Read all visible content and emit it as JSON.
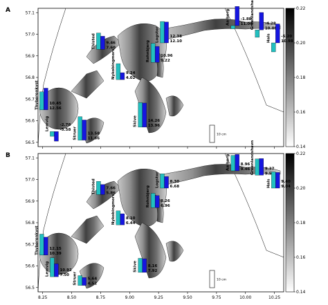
{
  "axes": {
    "xlim": [
      8.21,
      10.33
    ],
    "ylim": [
      56.48,
      57.12
    ],
    "xticks": [
      8.25,
      {
        "value": 8.5,
        "label": "8.50"
      },
      8.75,
      {
        "value": 9,
        "label": "9.00"
      },
      9.25,
      {
        "value": 9.5,
        "label": "9.50"
      },
      9.75,
      {
        "value": 10,
        "label": "10.00"
      },
      10.25
    ],
    "yticks": [
      56.5,
      56.6,
      56.7,
      56.8,
      56.9,
      {
        "value": 57,
        "label": "57.0"
      },
      57.1
    ]
  },
  "colorbar": {
    "clim": [
      0.14,
      0.22
    ],
    "ticks": [
      0.14,
      0.16,
      0.18,
      {
        "value": 0.2,
        "label": "0.20"
      },
      0.22
    ]
  },
  "bar_colors": [
    "#22c0c0",
    "#1616e0"
  ],
  "scale_bar": {
    "value": 10,
    "label": "10 cm"
  },
  "panels": [
    {
      "label": "A",
      "stations": [
        {
          "name": "Thyboronkyst",
          "lon": 8.26,
          "lat": 56.65,
          "values": [
            10.45,
            12.56
          ],
          "value_labels": [
            "10.45",
            "12.56"
          ]
        },
        {
          "name": "Lemvig",
          "lon": 8.35,
          "lat": 56.55,
          "values": [
            -2.78,
            -5.58
          ],
          "value_labels": [
            "-2.78",
            "-5.58"
          ]
        },
        {
          "name": "Struer",
          "lon": 8.59,
          "lat": 56.51,
          "values": [
            13.58,
            11.66
          ],
          "value_labels": [
            "13.58",
            "11.66"
          ]
        },
        {
          "name": "Skive",
          "lon": 9.11,
          "lat": 56.57,
          "values": [
            14.26,
            13.96
          ],
          "value_labels": [
            "14.26",
            "13.96"
          ]
        },
        {
          "name": "Nykobingmors",
          "lon": 8.92,
          "lat": 56.79,
          "values": [
            9.24,
            4.02
          ],
          "value_labels": [
            "9.24",
            "4.02"
          ]
        },
        {
          "name": "Thisted",
          "lon": 8.75,
          "lat": 56.93,
          "values": [
            9.46,
            7.6
          ],
          "value_labels": [
            "9.46",
            "7.60"
          ]
        },
        {
          "name": "Rohnbjerg",
          "lon": 9.22,
          "lat": 56.87,
          "values": [
            10.96,
            9.22
          ],
          "value_labels": [
            "10.96",
            "9.22"
          ]
        },
        {
          "name": "Logstor",
          "lon": 9.3,
          "lat": 56.96,
          "values": [
            12.38,
            12.1
          ],
          "value_labels": [
            "12.38",
            "12.10"
          ]
        },
        {
          "name": "Aalborg",
          "lon": 9.91,
          "lat": 57.04,
          "values": [
            -1.88,
            11.06
          ],
          "value_labels": [
            "-1.88",
            "11.06"
          ]
        },
        {
          "name": "Greenlandshavn",
          "lon": 10.12,
          "lat": 57.02,
          "values": [
            -4.28,
            10.09
          ],
          "value_labels": [
            "-4.28",
            "10.09"
          ]
        },
        {
          "name": "Hals",
          "lon": 10.26,
          "lat": 56.96,
          "values": [
            -5.2,
            10.98
          ],
          "value_labels": [
            "-5.20",
            "10.98"
          ]
        }
      ]
    },
    {
      "label": "B",
      "stations": [
        {
          "name": "Thyboronkyst",
          "lon": 8.26,
          "lat": 56.65,
          "values": [
            12.15,
            10.39
          ],
          "value_labels": [
            "12.15",
            "10.39"
          ]
        },
        {
          "name": "Lemvig",
          "lon": 8.35,
          "lat": 56.55,
          "values": [
            10.92,
            7.5
          ],
          "value_labels": [
            "10.92",
            "7.50"
          ]
        },
        {
          "name": "Struer",
          "lon": 8.59,
          "lat": 56.51,
          "values": [
            5.64,
            4.52
          ],
          "value_labels": [
            "5.64",
            "4.52"
          ]
        },
        {
          "name": "Skive",
          "lon": 9.11,
          "lat": 56.57,
          "values": [
            8.16,
            7.92
          ],
          "value_labels": [
            "8.16",
            "7.92"
          ]
        },
        {
          "name": "Nykobingmors",
          "lon": 8.92,
          "lat": 56.79,
          "values": [
            8.1,
            6.44
          ],
          "value_labels": [
            "8.10",
            "6.44"
          ]
        },
        {
          "name": "Thisted",
          "lon": 8.75,
          "lat": 56.93,
          "values": [
            7.66,
            5.86
          ],
          "value_labels": [
            "7.66",
            "5.86"
          ]
        },
        {
          "name": "Rohnbjerg",
          "lon": 9.22,
          "lat": 56.87,
          "values": [
            8.26,
            6.96
          ],
          "value_labels": [
            "8.26",
            "6.96"
          ]
        },
        {
          "name": "Logstor",
          "lon": 9.3,
          "lat": 56.96,
          "values": [
            8.3,
            6.68
          ],
          "value_labels": [
            "8.30",
            "6.68"
          ]
        },
        {
          "name": "Aalborg",
          "lon": 9.91,
          "lat": 57.04,
          "values": [
            8.96,
            9.46
          ],
          "value_labels": [
            "8.96",
            "9.46"
          ]
        },
        {
          "name": "Greenlandshavn",
          "lon": 10.12,
          "lat": 57.02,
          "values": [
            9.37,
            9.59
          ],
          "value_labels": [
            "9.37",
            "9.59"
          ]
        },
        {
          "name": "Hals",
          "lon": 10.26,
          "lat": 56.96,
          "values": [
            9.4,
            9.04
          ],
          "value_labels": [
            "9.40",
            "9.04"
          ]
        }
      ]
    }
  ]
}
